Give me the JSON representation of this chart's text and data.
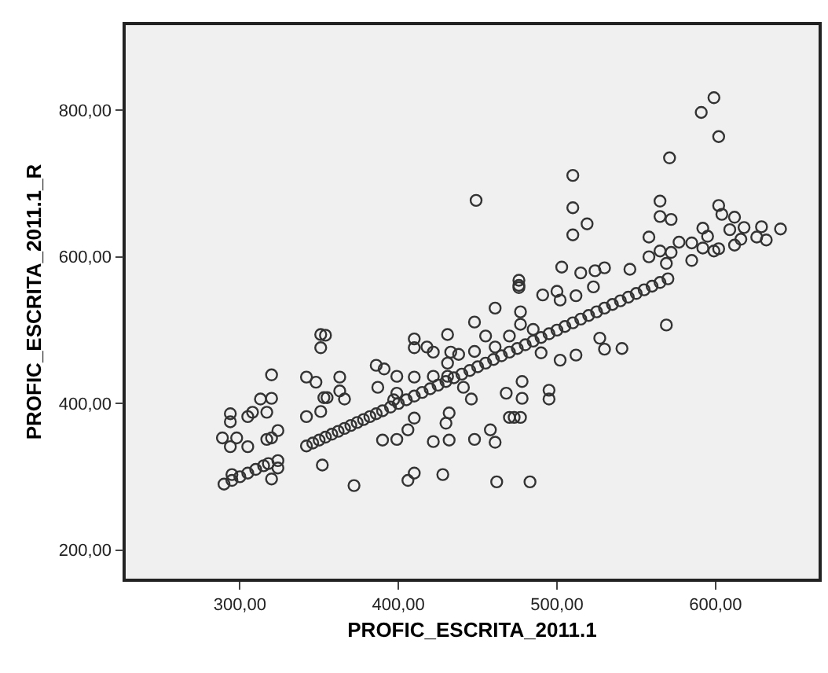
{
  "chart_data": {
    "type": "scatter",
    "xlabel": "PROFIC_ESCRITA_2011.1",
    "ylabel": "PROFIC_ESCRITA_2011.1_R",
    "marker": "circle",
    "grid": false,
    "color": "#333333",
    "x": [
      290,
      295,
      300,
      305,
      310,
      315,
      318,
      342,
      346,
      350,
      354,
      358,
      362,
      366,
      370,
      374,
      378,
      382,
      386,
      390,
      395,
      400,
      405,
      410,
      415,
      420,
      425,
      430,
      435,
      440,
      445,
      450,
      455,
      460,
      465,
      470,
      475,
      480,
      485,
      490,
      495,
      500,
      505,
      510,
      515,
      520,
      525,
      530,
      535,
      540,
      545,
      550,
      555,
      560,
      565,
      570,
      320,
      294,
      294,
      289,
      298,
      305,
      308,
      313,
      320,
      317,
      324,
      317,
      320,
      305,
      294,
      295,
      324,
      320,
      324,
      342,
      348,
      351,
      354,
      351,
      342,
      351,
      353,
      355,
      363,
      363,
      366,
      352,
      372,
      386,
      391,
      387,
      390,
      399,
      399,
      397,
      399,
      406,
      410,
      410,
      410,
      410,
      418,
      422,
      422,
      432,
      432,
      430,
      428,
      410,
      406,
      431,
      433,
      438,
      431,
      422,
      431,
      599,
      591,
      602,
      571,
      510,
      449,
      510,
      519,
      510,
      565,
      565,
      572,
      602,
      604,
      612,
      592,
      595,
      609,
      618,
      629,
      641,
      626,
      632,
      616,
      612,
      602,
      599,
      585,
      592,
      577,
      558,
      558,
      585,
      503,
      515,
      524,
      530,
      476,
      476,
      546,
      569,
      565,
      572,
      476,
      491,
      500,
      502,
      512,
      523,
      448,
      455,
      461,
      477,
      477,
      485,
      470,
      461,
      448,
      490,
      502,
      512,
      527,
      530,
      541,
      569,
      441,
      446,
      468,
      478,
      478,
      495,
      495,
      470,
      473,
      477,
      458,
      461,
      448,
      462,
      483
    ],
    "values": [
      290,
      295,
      300,
      305,
      310,
      315,
      318,
      342,
      346,
      350,
      354,
      358,
      362,
      366,
      370,
      374,
      378,
      382,
      386,
      390,
      395,
      400,
      405,
      410,
      415,
      420,
      425,
      430,
      435,
      440,
      445,
      450,
      455,
      460,
      465,
      470,
      475,
      480,
      485,
      490,
      495,
      500,
      505,
      510,
      515,
      520,
      525,
      530,
      535,
      540,
      545,
      550,
      555,
      560,
      565,
      570,
      439,
      386,
      375,
      353,
      353,
      382,
      388,
      406,
      407,
      388,
      363,
      351,
      353,
      341,
      341,
      303,
      312,
      297,
      322,
      436,
      429,
      494,
      493,
      476,
      382,
      389,
      408,
      408,
      436,
      417,
      406,
      316,
      288,
      452,
      447,
      422,
      350,
      351,
      437,
      405,
      414,
      364,
      380,
      436,
      488,
      476,
      477,
      470,
      348,
      350,
      387,
      373,
      303,
      305,
      295,
      494,
      470,
      467,
      455,
      437,
      437,
      817,
      797,
      764,
      735,
      711,
      677,
      667,
      645,
      630,
      676,
      655,
      651,
      670,
      658,
      654,
      639,
      628,
      637,
      640,
      641,
      638,
      627,
      623,
      624,
      616,
      611,
      608,
      619,
      612,
      620,
      627,
      600,
      595,
      586,
      578,
      581,
      585,
      568,
      561,
      583,
      591,
      608,
      606,
      558,
      548,
      553,
      541,
      547,
      559,
      511,
      492,
      530,
      525,
      508,
      501,
      492,
      477,
      471,
      469,
      459,
      466,
      489,
      474,
      475,
      507,
      422,
      406,
      414,
      430,
      407,
      418,
      406,
      381,
      381,
      381,
      364,
      347,
      351,
      293,
      293
    ],
    "xlim": [
      228,
      665
    ],
    "ylim": [
      161,
      916
    ],
    "xticks": [
      {
        "value": 300,
        "label": "300,00"
      },
      {
        "value": 400,
        "label": "400,00"
      },
      {
        "value": 500,
        "label": "500,00"
      },
      {
        "value": 600,
        "label": "600,00"
      }
    ],
    "yticks": [
      {
        "value": 200,
        "label": "200,00"
      },
      {
        "value": 400,
        "label": "400,00"
      },
      {
        "value": 600,
        "label": "600,00"
      },
      {
        "value": 800,
        "label": "800,00"
      }
    ]
  }
}
